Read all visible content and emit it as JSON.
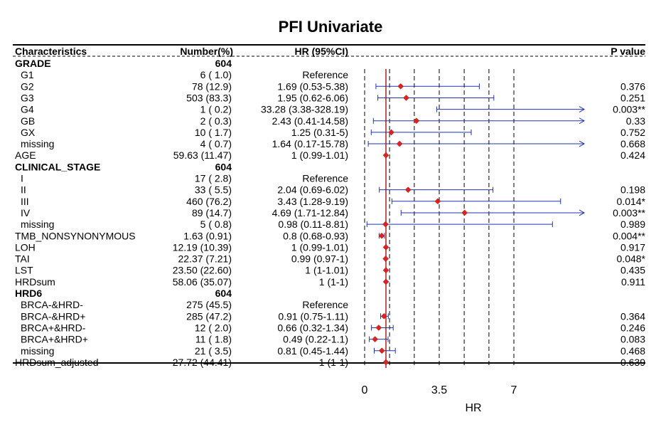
{
  "chart_data": {
    "type": "forest",
    "title": "PFI Univariate",
    "header": {
      "characteristics": "Characteristics",
      "number": "Number(%)",
      "hr": "HR (95%CI)",
      "p": "P value"
    },
    "xlabel": "HR",
    "xlim": [
      0,
      10.3
    ],
    "x_ticks": [
      0,
      3.5,
      7
    ],
    "x_tick_labels": [
      "0",
      "3.5",
      "7"
    ],
    "dashed_lines": [
      0,
      1.17,
      2.33,
      3.5,
      4.67,
      5.83,
      7
    ],
    "reference_line": 1,
    "colors": {
      "point": "#dd2222",
      "ci": "#2233aa",
      "reference": "#aa2222",
      "grid": "#000000"
    },
    "rows": [
      {
        "label": "GRADE",
        "number": "604",
        "hr": "",
        "p": "",
        "bold": true
      },
      {
        "label": "G1",
        "number": "6 ( 1.0)",
        "hr": "Reference",
        "p": "",
        "indent": true
      },
      {
        "label": "G2",
        "number": "78 (12.9)",
        "hr": "1.69 (0.53-5.38)",
        "p": "0.376",
        "indent": true,
        "est": 1.69,
        "lo": 0.53,
        "hi": 5.38
      },
      {
        "label": "G3",
        "number": "503 (83.3)",
        "hr": "1.95 (0.62-6.06)",
        "p": "0.251",
        "indent": true,
        "est": 1.95,
        "lo": 0.62,
        "hi": 6.06
      },
      {
        "label": "G4",
        "number": "1 ( 0.2)",
        "hr": "33.28 (3.38-328.19)",
        "p": "0.003**",
        "indent": true,
        "est": 33.28,
        "lo": 3.38,
        "hi": 328.19
      },
      {
        "label": "GB",
        "number": "2 ( 0.3)",
        "hr": "2.43 (0.41-14.58)",
        "p": "0.33",
        "indent": true,
        "est": 2.43,
        "lo": 0.41,
        "hi": 14.58
      },
      {
        "label": "GX",
        "number": "10 ( 1.7)",
        "hr": "1.25 (0.31-5)",
        "p": "0.752",
        "indent": true,
        "est": 1.25,
        "lo": 0.31,
        "hi": 5
      },
      {
        "label": "missing",
        "number": "4 ( 0.7)",
        "hr": "1.64 (0.17-15.78)",
        "p": "0.668",
        "indent": true,
        "est": 1.64,
        "lo": 0.17,
        "hi": 15.78
      },
      {
        "label": "AGE",
        "number": "59.63 (11.47)",
        "hr": "1 (0.99-1.01)",
        "p": "0.424",
        "est": 1,
        "lo": 0.99,
        "hi": 1.01
      },
      {
        "label": "CLINICAL_STAGE",
        "number": "604",
        "hr": "",
        "p": "",
        "bold": true
      },
      {
        "label": "I",
        "number": "17 ( 2.8)",
        "hr": "Reference",
        "p": "",
        "indent": true
      },
      {
        "label": "II",
        "number": "33 ( 5.5)",
        "hr": "2.04 (0.69-6.02)",
        "p": "0.198",
        "indent": true,
        "est": 2.04,
        "lo": 0.69,
        "hi": 6.02
      },
      {
        "label": "III",
        "number": "460 (76.2)",
        "hr": "3.43 (1.28-9.19)",
        "p": "0.014*",
        "indent": true,
        "est": 3.43,
        "lo": 1.28,
        "hi": 9.19
      },
      {
        "label": "IV",
        "number": "89 (14.7)",
        "hr": "4.69 (1.71-12.84)",
        "p": "0.003**",
        "indent": true,
        "est": 4.69,
        "lo": 1.71,
        "hi": 12.84
      },
      {
        "label": "missing",
        "number": "5 ( 0.8)",
        "hr": "0.98 (0.11-8.81)",
        "p": "0.989",
        "indent": true,
        "est": 0.98,
        "lo": 0.11,
        "hi": 8.81
      },
      {
        "label": "TMB_NONSYNONYMOUS",
        "number": "1.63 (0.91)",
        "hr": "0.8 (0.68-0.93)",
        "p": "0.004**",
        "est": 0.8,
        "lo": 0.68,
        "hi": 0.93
      },
      {
        "label": "LOH",
        "number": "12.19 (10.39)",
        "hr": "1 (0.99-1.01)",
        "p": "0.917",
        "est": 1,
        "lo": 0.99,
        "hi": 1.01
      },
      {
        "label": "TAI",
        "number": "22.37 (7.21)",
        "hr": "0.99 (0.97-1)",
        "p": "0.048*",
        "est": 0.99,
        "lo": 0.97,
        "hi": 1
      },
      {
        "label": "LST",
        "number": "23.50 (22.60)",
        "hr": "1 (1-1.01)",
        "p": "0.435",
        "est": 1,
        "lo": 1,
        "hi": 1.01
      },
      {
        "label": "HRDsum",
        "number": "58.06 (35.07)",
        "hr": "1 (1-1)",
        "p": "0.911",
        "est": 1,
        "lo": 1,
        "hi": 1
      },
      {
        "label": "HRD6",
        "number": "604",
        "hr": "",
        "p": "",
        "bold": true
      },
      {
        "label": "BRCA-&HRD-",
        "number": "275 (45.5)",
        "hr": "Reference",
        "p": "",
        "indent": true
      },
      {
        "label": "BRCA-&HRD+",
        "number": "285 (47.2)",
        "hr": "0.91 (0.75-1.11)",
        "p": "0.364",
        "indent": true,
        "est": 0.91,
        "lo": 0.75,
        "hi": 1.11
      },
      {
        "label": "BRCA+&HRD-",
        "number": "12 ( 2.0)",
        "hr": "0.66 (0.32-1.34)",
        "p": "0.246",
        "indent": true,
        "est": 0.66,
        "lo": 0.32,
        "hi": 1.34
      },
      {
        "label": "BRCA+&HRD+",
        "number": "11 ( 1.8)",
        "hr": "0.49 (0.22-1.1)",
        "p": "0.083",
        "indent": true,
        "est": 0.49,
        "lo": 0.22,
        "hi": 1.1
      },
      {
        "label": "missing",
        "number": "21 ( 3.5)",
        "hr": "0.81 (0.45-1.44)",
        "p": "0.468",
        "indent": true,
        "est": 0.81,
        "lo": 0.45,
        "hi": 1.44
      },
      {
        "label": "HRDsum_adjusted",
        "number": "27.72 (44.41)",
        "hr": "1 (1-1)",
        "p": "0.639",
        "est": 1,
        "lo": 1,
        "hi": 1
      }
    ]
  }
}
